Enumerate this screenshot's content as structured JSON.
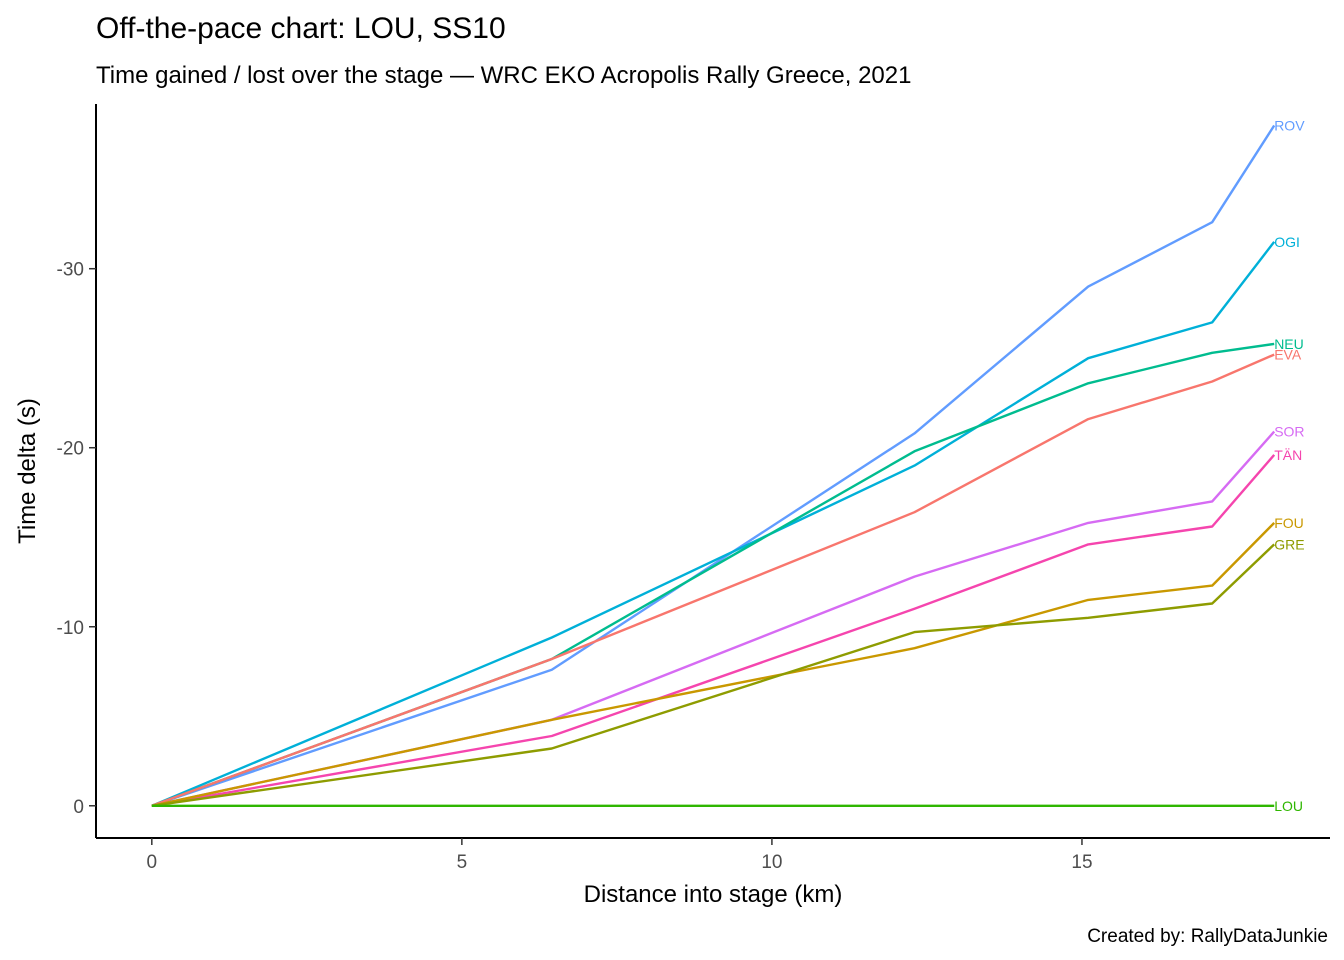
{
  "chart_data": {
    "type": "line",
    "title": "Off-the-pace chart: LOU, SS10",
    "subtitle": "Time gained / lost over the stage — WRC EKO Acropolis Rally Greece, 2021",
    "xlabel": "Distance into stage (km)",
    "ylabel": "Time delta (s)",
    "caption": "Created by: RallyDataJunkie",
    "xlim": [
      -0.9,
      19.0
    ],
    "ylim": [
      1.8,
      -39.2
    ],
    "y_reversed": true,
    "x_ticks": [
      0,
      5,
      10,
      15
    ],
    "y_ticks": [
      0,
      -10,
      -20,
      -30
    ],
    "x_tick_labels": [
      "0",
      "5",
      "10",
      "15"
    ],
    "y_tick_labels": [
      "0",
      "-10",
      "-20",
      "-30"
    ],
    "grid": false,
    "legend": "direct labels at line ends",
    "x": [
      0,
      6.45,
      12.3,
      15.1,
      17.1,
      18.1
    ],
    "series": [
      {
        "name": "ROV",
        "color": "#619CFF",
        "values": [
          0,
          -7.6,
          -20.8,
          -29.0,
          -32.6,
          -38.0
        ]
      },
      {
        "name": "OGI",
        "color": "#00B0D8",
        "values": [
          0,
          -9.4,
          -19.0,
          -25.0,
          -27.0,
          -31.5
        ]
      },
      {
        "name": "NEU",
        "color": "#00BC8F",
        "values": [
          0,
          -8.2,
          -19.8,
          -23.6,
          -25.3,
          -25.8
        ]
      },
      {
        "name": "EVA",
        "color": "#F8766D",
        "values": [
          0,
          -8.2,
          -16.4,
          -21.6,
          -23.7,
          -25.2
        ]
      },
      {
        "name": "SOR",
        "color": "#D66BF3",
        "values": [
          0,
          -4.8,
          -12.8,
          -15.8,
          -17.0,
          -20.9
        ]
      },
      {
        "name": "TÄN",
        "color": "#F545AE",
        "values": [
          0,
          -3.9,
          -11.0,
          -14.6,
          -15.6,
          -19.6
        ]
      },
      {
        "name": "FOU",
        "color": "#C99800",
        "values": [
          0,
          -4.8,
          -8.8,
          -11.5,
          -12.3,
          -15.8
        ]
      },
      {
        "name": "GRE",
        "color": "#8E9C00",
        "values": [
          0,
          -3.2,
          -9.7,
          -10.5,
          -11.3,
          -14.6
        ]
      },
      {
        "name": "LOU",
        "color": "#2FB600",
        "values": [
          0,
          0,
          0,
          0,
          0,
          0
        ]
      }
    ]
  }
}
